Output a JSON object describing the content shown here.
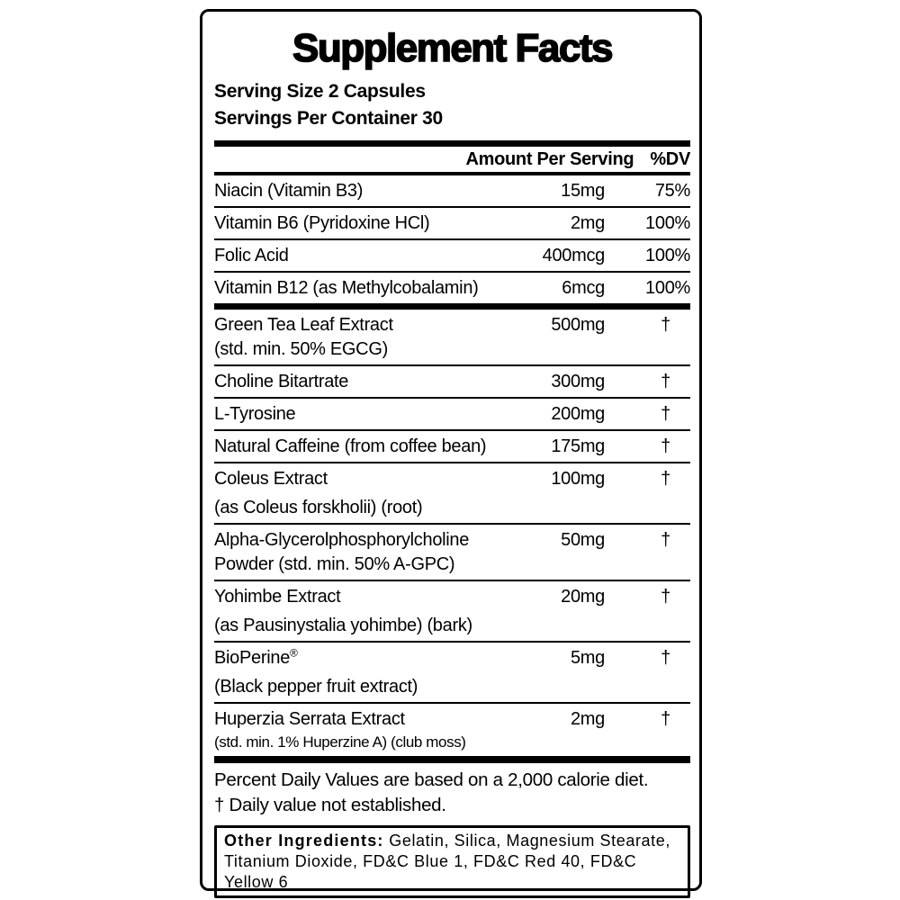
{
  "label": {
    "title": "Supplement Facts",
    "serving_size": "Serving Size 2 Capsules",
    "servings_per_container": "Servings Per Container 30",
    "header": {
      "amount": "Amount Per Serving",
      "dv": "%DV"
    },
    "vitamins": [
      {
        "name": "Niacin (Vitamin B3)",
        "amount": "15mg",
        "dv": "75%"
      },
      {
        "name": "Vitamin B6 (Pyridoxine HCl)",
        "amount": "2mg",
        "dv": "100%"
      },
      {
        "name": "Folic Acid",
        "amount": "400mcg",
        "dv": "100%"
      },
      {
        "name": "Vitamin B12 (as Methylcobalamin)",
        "amount": "6mcg",
        "dv": "100%"
      }
    ],
    "blend": [
      {
        "name": "Green Tea Leaf Extract",
        "sub": "(std. min. 50% EGCG)",
        "amount": "500mg",
        "dv": "†"
      },
      {
        "name": "Choline Bitartrate",
        "amount": "300mg",
        "dv": "†"
      },
      {
        "name": "L-Tyrosine",
        "amount": "200mg",
        "dv": "†"
      },
      {
        "name": "Natural Caffeine (from coffee bean)",
        "amount": "175mg",
        "dv": "†"
      },
      {
        "name": "Coleus Extract",
        "sub": "(as Coleus forskholii) (root)",
        "sub_gap": true,
        "amount": "100mg",
        "dv": "†"
      },
      {
        "name": "Alpha-Glycerolphosphorylcholine",
        "sub": "Powder (std. min. 50% A-GPC)",
        "amount": "50mg",
        "dv": "†"
      },
      {
        "name": "Yohimbe Extract",
        "sub": "(as Pausinystalia yohimbe) (bark)",
        "sub_gap": true,
        "amount": "20mg",
        "dv": "†"
      },
      {
        "name": "BioPerine®",
        "sub": "(Black pepper fruit extract)",
        "sub_gap": true,
        "amount": "5mg",
        "dv": "†"
      },
      {
        "name": "Huperzia Serrata Extract",
        "sub": "(std. min. 1% Huperzine A) (club moss)",
        "sub_small": true,
        "amount": "2mg",
        "dv": "†"
      }
    ],
    "footnotes": [
      "Percent Daily Values are based on a 2,000 calorie diet.",
      "† Daily value not established."
    ],
    "other_ingredients": {
      "label": "Other Ingredients:",
      "line1": "Gelatin, Silica, Magnesium Stearate,",
      "line2": "Titanium Dioxide, FD&C Blue 1, FD&C Red 40, FD&C Yellow 6"
    },
    "colors": {
      "ink": "#000000",
      "paper": "#ffffff"
    }
  }
}
